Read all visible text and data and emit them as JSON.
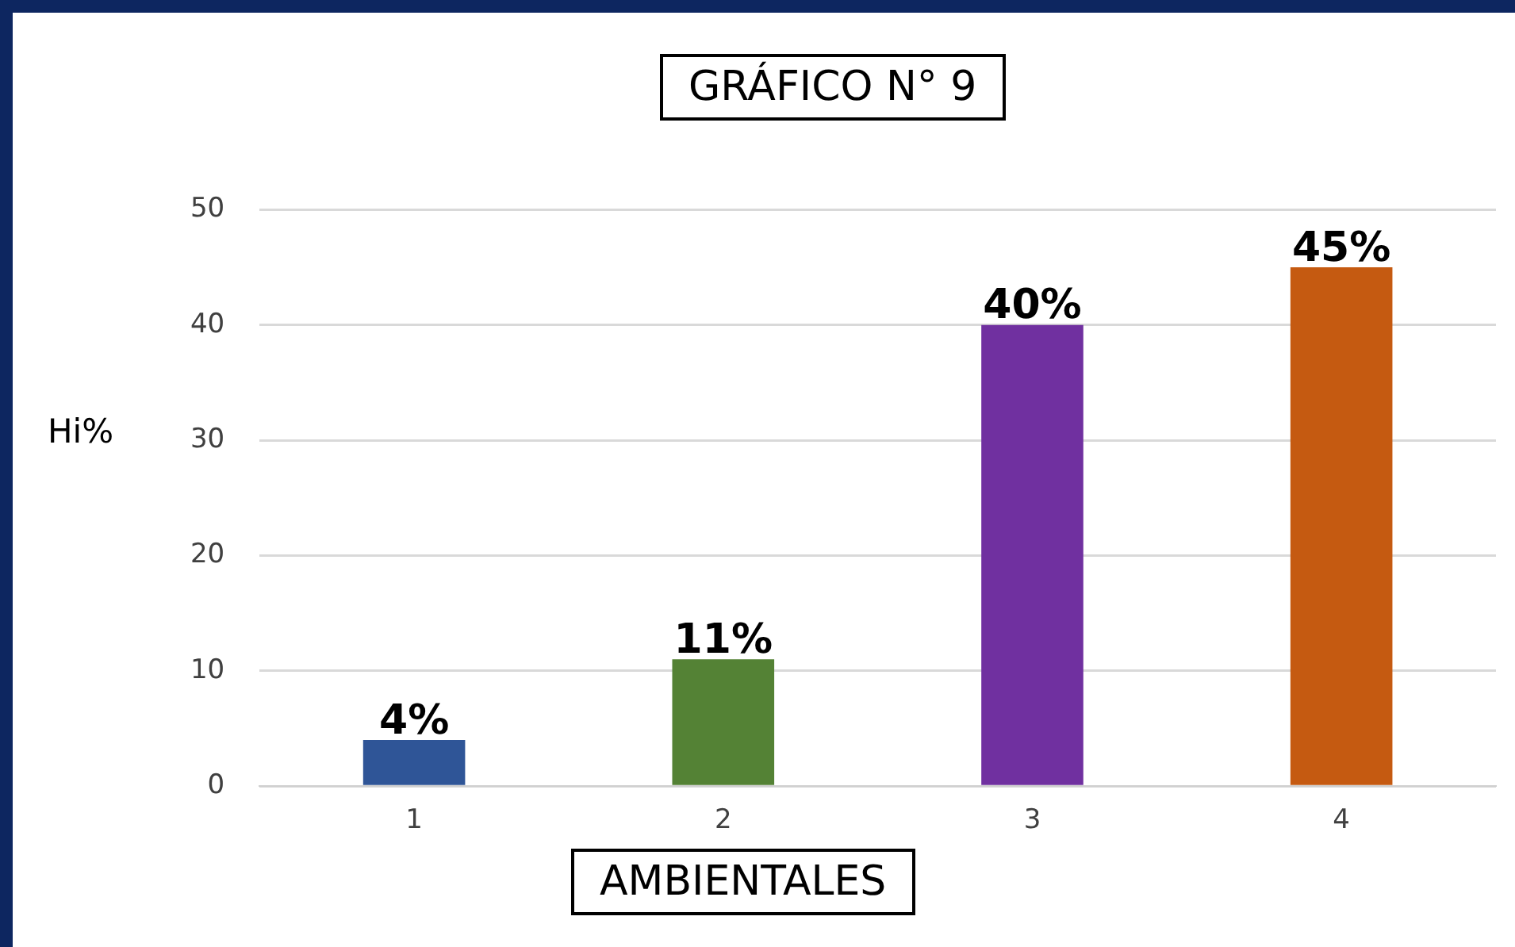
{
  "chart_data": {
    "type": "bar",
    "title": "GRÁFICO N° 9",
    "xlabel": "AMBIENTALES",
    "ylabel": "Hi%",
    "categories": [
      "1",
      "2",
      "3",
      "4"
    ],
    "values": [
      4,
      11,
      40,
      45
    ],
    "colors": [
      "#2f5597",
      "#548235",
      "#7030a0",
      "#c55a11"
    ],
    "value_labels": [
      "4%",
      "11%",
      "40%",
      "45%"
    ],
    "ylim": [
      0,
      50
    ],
    "yticks": [
      0,
      10,
      20,
      30,
      40,
      50
    ],
    "grid": "y",
    "legend": false
  }
}
